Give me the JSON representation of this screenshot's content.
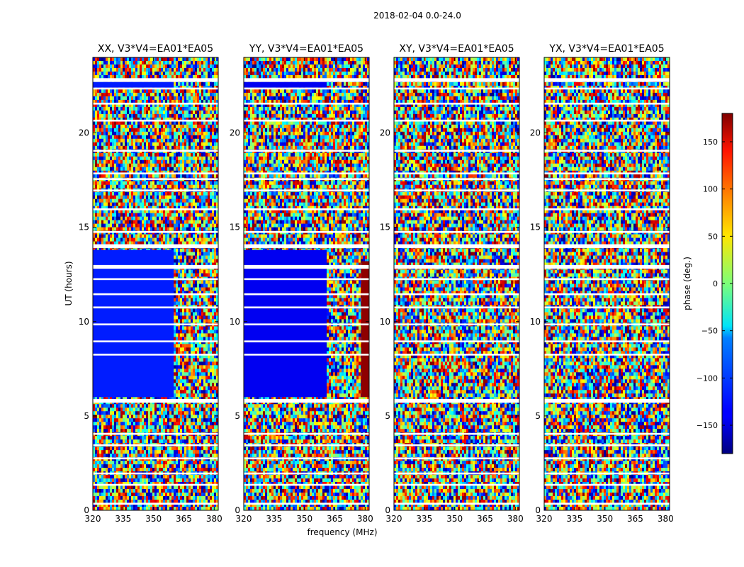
{
  "chart_data": {
    "type": "heatmap",
    "suptitle": "2018-02-04 0.0-24.0",
    "xlabel": "frequency (MHz)",
    "ylabel": "UT (hours)",
    "xlim": [
      320,
      382
    ],
    "ylim": [
      0,
      24
    ],
    "xticks": [
      "320",
      "335",
      "350",
      "365",
      "380"
    ],
    "yticks": [
      "0",
      "5",
      "10",
      "15",
      "20"
    ],
    "colorbar": {
      "label": "phase (deg.)",
      "range": [
        -180,
        180
      ],
      "ticks": [
        "150",
        "100",
        "50",
        "0",
        "−50",
        "−100",
        "−150"
      ],
      "colormap": "jet"
    },
    "panels": [
      {
        "title": "XX, V3*V4=EA01*EA05"
      },
      {
        "title": "YY, V3*V4=EA01*EA05"
      },
      {
        "title": "XY, V3*V4=EA01*EA05"
      },
      {
        "title": "YX, V3*V4=EA01*EA05"
      }
    ],
    "flagged_ut_bands_hours": [
      [
        0.3,
        0.4
      ],
      [
        1.3,
        1.4
      ],
      [
        1.9,
        2.0
      ],
      [
        2.7,
        2.8
      ],
      [
        3.4,
        3.5
      ],
      [
        4.0,
        4.1
      ],
      [
        5.7,
        5.9
      ],
      [
        8.2,
        8.3
      ],
      [
        8.9,
        9.0
      ],
      [
        9.8,
        9.9
      ],
      [
        10.7,
        10.8
      ],
      [
        11.4,
        11.5
      ],
      [
        12.2,
        12.3
      ],
      [
        12.8,
        13.0
      ],
      [
        13.9,
        14.1
      ],
      [
        14.7,
        14.8
      ],
      [
        15.9,
        16.0
      ],
      [
        16.9,
        17.0
      ],
      [
        17.5,
        17.6
      ],
      [
        17.8,
        17.9
      ],
      [
        19.0,
        19.1
      ],
      [
        20.6,
        20.7
      ],
      [
        21.5,
        21.6
      ],
      [
        22.3,
        22.4
      ],
      [
        22.7,
        22.9
      ]
    ],
    "coherent_phase_blocks": [
      {
        "panel": "XX",
        "ut_range": [
          6.0,
          13.8
        ],
        "freq_range": [
          320,
          360
        ],
        "phase_deg": -125
      },
      {
        "panel": "XX",
        "ut_range": [
          22.4,
          22.7
        ],
        "freq_range": [
          320,
          360
        ],
        "phase_deg": -125
      },
      {
        "panel": "YY",
        "ut_range": [
          6.0,
          13.8
        ],
        "freq_range": [
          320,
          361
        ],
        "phase_deg": -140
      },
      {
        "panel": "YY",
        "ut_range": [
          6.0,
          13.2
        ],
        "freq_range": [
          378,
          382
        ],
        "phase_deg": 175
      },
      {
        "panel": "YY",
        "ut_range": [
          22.4,
          22.7
        ],
        "freq_range": [
          320,
          361
        ],
        "phase_deg": -140
      }
    ]
  }
}
